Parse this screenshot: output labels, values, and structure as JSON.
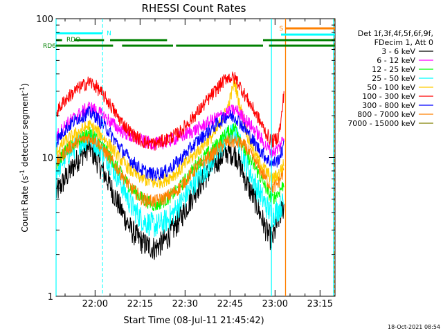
{
  "chart_data": {
    "type": "line",
    "title": "RHESSI Count Rates",
    "xlabel": "Start Time (08-Jul-11 21:45:42)",
    "ylabel_main": "Count Rate (s",
    "ylabel_exp1": "-1",
    "ylabel_mid": " detector segment",
    "ylabel_exp2": "-1",
    "ylabel_end": ")",
    "y_scale": "log",
    "ylim": [
      1,
      100
    ],
    "xlim_minutes": [
      -13,
      80
    ],
    "x_ticks": [
      {
        "label": "22:00",
        "t": 0
      },
      {
        "label": "22:15",
        "t": 15
      },
      {
        "label": "22:30",
        "t": 30
      },
      {
        "label": "22:45",
        "t": 45
      },
      {
        "label": "23:00",
        "t": 60
      },
      {
        "label": "23:15",
        "t": 75
      }
    ],
    "y_ticks": [
      {
        "label": "1",
        "v": 1
      },
      {
        "label": "10",
        "v": 10
      },
      {
        "label": "100",
        "v": 100
      }
    ],
    "legend_header1": "Det 1f,3f,4f,5f,6f,9f,",
    "legend_header2": "FDecim 1, Att 0",
    "legend_placement": "right",
    "series": [
      {
        "name": "3 - 6 keV",
        "color": "#000000",
        "points": [
          [
            -13,
            5.5
          ],
          [
            -10,
            7
          ],
          [
            -6,
            9.5
          ],
          [
            -2,
            12
          ],
          [
            0,
            10
          ],
          [
            4,
            7
          ],
          [
            8,
            4.5
          ],
          [
            12,
            3
          ],
          [
            16,
            2.4
          ],
          [
            20,
            2.2
          ],
          [
            24,
            2.6
          ],
          [
            28,
            3.5
          ],
          [
            34,
            6
          ],
          [
            40,
            9
          ],
          [
            44,
            11
          ],
          [
            47,
            10.5
          ],
          [
            50,
            7
          ],
          [
            54,
            4.5
          ],
          [
            57,
            3
          ],
          [
            59,
            2.5
          ],
          [
            61,
            3.5
          ],
          [
            63,
            4.5
          ]
        ]
      },
      {
        "name": "6 - 12 keV",
        "color": "#ff00ff",
        "points": [
          [
            -13,
            14
          ],
          [
            -10,
            17
          ],
          [
            -6,
            20
          ],
          [
            -2,
            23
          ],
          [
            0,
            22
          ],
          [
            4,
            19
          ],
          [
            8,
            16
          ],
          [
            12,
            14
          ],
          [
            16,
            13
          ],
          [
            20,
            12.5
          ],
          [
            24,
            13
          ],
          [
            28,
            14
          ],
          [
            34,
            16
          ],
          [
            40,
            19
          ],
          [
            44,
            21
          ],
          [
            47,
            22
          ],
          [
            50,
            19
          ],
          [
            54,
            15
          ],
          [
            57,
            12
          ],
          [
            59,
            11
          ],
          [
            61,
            11.5
          ],
          [
            63,
            14
          ]
        ]
      },
      {
        "name": "12 - 25 keV",
        "color": "#00ff00",
        "points": [
          [
            -13,
            9
          ],
          [
            -10,
            11
          ],
          [
            -6,
            13
          ],
          [
            -2,
            15
          ],
          [
            0,
            14
          ],
          [
            4,
            11
          ],
          [
            8,
            8
          ],
          [
            12,
            6
          ],
          [
            16,
            5
          ],
          [
            20,
            4.5
          ],
          [
            24,
            5
          ],
          [
            28,
            6
          ],
          [
            34,
            9
          ],
          [
            40,
            12
          ],
          [
            44,
            15
          ],
          [
            47,
            16.5
          ],
          [
            50,
            11
          ],
          [
            54,
            8
          ],
          [
            57,
            6
          ],
          [
            59,
            5
          ],
          [
            61,
            5.5
          ],
          [
            63,
            6.5
          ]
        ]
      },
      {
        "name": "25 - 50 keV",
        "color": "#00ffff",
        "points": [
          [
            -13,
            8
          ],
          [
            -10,
            10
          ],
          [
            -6,
            12.5
          ],
          [
            -2,
            14
          ],
          [
            0,
            13
          ],
          [
            4,
            10
          ],
          [
            8,
            7
          ],
          [
            12,
            4.5
          ],
          [
            16,
            3.5
          ],
          [
            20,
            3.2
          ],
          [
            24,
            3.5
          ],
          [
            28,
            4.5
          ],
          [
            34,
            7
          ],
          [
            40,
            10
          ],
          [
            44,
            14
          ],
          [
            47,
            15
          ],
          [
            50,
            9.5
          ],
          [
            54,
            6
          ],
          [
            57,
            4.5
          ],
          [
            59,
            3.8
          ],
          [
            61,
            4.2
          ],
          [
            63,
            4.8
          ]
        ]
      },
      {
        "name": "50 - 100 keV",
        "color": "#ffcc00",
        "points": [
          [
            -13,
            11
          ],
          [
            -10,
            13
          ],
          [
            -6,
            15
          ],
          [
            -2,
            17
          ],
          [
            0,
            16
          ],
          [
            4,
            13
          ],
          [
            8,
            10
          ],
          [
            12,
            8
          ],
          [
            16,
            7
          ],
          [
            20,
            6.5
          ],
          [
            24,
            7
          ],
          [
            28,
            8
          ],
          [
            34,
            11
          ],
          [
            40,
            15
          ],
          [
            44,
            22
          ],
          [
            46.5,
            35
          ],
          [
            48,
            25
          ],
          [
            51,
            14
          ],
          [
            54,
            10
          ],
          [
            57,
            8
          ],
          [
            59,
            7
          ],
          [
            61,
            7.5
          ],
          [
            63,
            9
          ]
        ]
      },
      {
        "name": "100 - 300 keV",
        "color": "#ff0000",
        "points": [
          [
            -13,
            21
          ],
          [
            -10,
            26
          ],
          [
            -6,
            31
          ],
          [
            -2,
            35
          ],
          [
            0,
            33
          ],
          [
            4,
            26
          ],
          [
            8,
            19
          ],
          [
            12,
            15
          ],
          [
            16,
            13
          ],
          [
            20,
            12.5
          ],
          [
            24,
            13.5
          ],
          [
            28,
            15
          ],
          [
            34,
            21
          ],
          [
            40,
            30
          ],
          [
            44,
            38
          ],
          [
            47,
            37
          ],
          [
            50,
            28
          ],
          [
            54,
            20
          ],
          [
            57,
            15
          ],
          [
            59,
            13
          ],
          [
            61,
            14
          ],
          [
            62,
            18
          ],
          [
            63,
            30
          ]
        ]
      },
      {
        "name": "300 - 800 keV",
        "color": "#0000ff",
        "points": [
          [
            -13,
            13
          ],
          [
            -10,
            16
          ],
          [
            -6,
            19
          ],
          [
            -2,
            21
          ],
          [
            0,
            20
          ],
          [
            4,
            16
          ],
          [
            8,
            12
          ],
          [
            12,
            9.5
          ],
          [
            16,
            8
          ],
          [
            20,
            7.5
          ],
          [
            24,
            8
          ],
          [
            28,
            9.5
          ],
          [
            34,
            13
          ],
          [
            40,
            17
          ],
          [
            44,
            20
          ],
          [
            47,
            19.5
          ],
          [
            50,
            16
          ],
          [
            54,
            12
          ],
          [
            57,
            10
          ],
          [
            59,
            9
          ],
          [
            61,
            9.5
          ],
          [
            63,
            12
          ]
        ]
      },
      {
        "name": "800 - 7000 keV",
        "color": "#ff8000",
        "points": [
          [
            -13,
            9
          ],
          [
            -10,
            11
          ],
          [
            -6,
            13
          ],
          [
            -2,
            14
          ],
          [
            0,
            13.5
          ],
          [
            4,
            10.5
          ],
          [
            8,
            8
          ],
          [
            12,
            6
          ],
          [
            16,
            5
          ],
          [
            20,
            4.8
          ],
          [
            24,
            5.2
          ],
          [
            28,
            6
          ],
          [
            34,
            8.5
          ],
          [
            40,
            11
          ],
          [
            44,
            13
          ],
          [
            47,
            13
          ],
          [
            50,
            12
          ],
          [
            54,
            9
          ],
          [
            57,
            7
          ],
          [
            59,
            6
          ],
          [
            61,
            6.5
          ],
          [
            63,
            8
          ]
        ]
      },
      {
        "name": "7000 - 15000 keV",
        "color": "#808000",
        "points": []
      }
    ],
    "annotations": {
      "rdo_label": "RDO",
      "rdo_segments": [
        [
          -13,
          -11
        ],
        [
          -7,
          3
        ]
      ],
      "rd6_label": "RD6",
      "rd6_segments": [
        [
          -13,
          6
        ],
        [
          9,
          26
        ],
        [
          27,
          56
        ],
        [
          58,
          80
        ]
      ],
      "rd6_upper_segments": [
        [
          5,
          24
        ],
        [
          56,
          80
        ]
      ],
      "n_label": "N",
      "n_segments": [
        [
          -13,
          2.5
        ]
      ],
      "n_marker_t": 2.5,
      "s_label": "S",
      "s_segments": [
        [
          63.5,
          80
        ]
      ],
      "s_cyan_segments": [
        [
          62,
          80
        ]
      ],
      "cyan_vlines": [
        -13,
        58.8,
        79.5
      ],
      "orange_vline": 63.5
    },
    "grid": false
  },
  "footer_timestamp": "18-Oct-2021 08:54"
}
